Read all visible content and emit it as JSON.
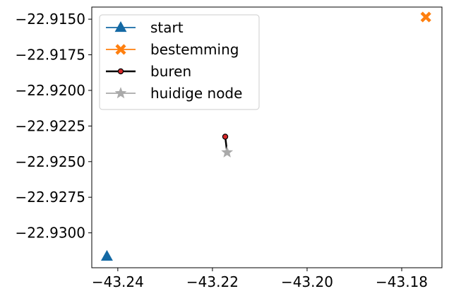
{
  "chart_data": {
    "type": "scatter",
    "title": "",
    "xlabel": "",
    "ylabel": "",
    "xlim": [
      -43.2455,
      -43.1715
    ],
    "ylim": [
      -22.93245,
      -22.91415
    ],
    "x_ticks": [
      -43.24,
      -43.22,
      -43.2,
      -43.18
    ],
    "x_tick_labels": [
      "−43.24",
      "−43.22",
      "−43.20",
      "−43.18"
    ],
    "y_ticks": [
      -22.915,
      -22.9175,
      -22.92,
      -22.9225,
      -22.925,
      -22.9275,
      -22.93
    ],
    "y_tick_labels": [
      "−22.9150",
      "−22.9175",
      "−22.9200",
      "−22.9225",
      "−22.9250",
      "−22.9275",
      "−22.9300"
    ],
    "grid": false,
    "legend_position": "top-left",
    "series": [
      {
        "name": "start",
        "marker": "triangle",
        "color": "#1469a4",
        "points": [
          [
            -43.2423,
            -22.93165
          ]
        ]
      },
      {
        "name": "bestemming",
        "marker": "x",
        "color": "#ff7f0e",
        "points": [
          [
            -43.1749,
            -22.91485
          ]
        ]
      },
      {
        "name": "buren",
        "marker": "circle",
        "color": "#000000",
        "marker_fill": "#d62728",
        "line": true,
        "points": [
          [
            -43.2173,
            -22.92325
          ],
          [
            -43.2169,
            -22.92435
          ]
        ]
      },
      {
        "name": "huidige node",
        "marker": "star",
        "color": "#aaaaaa",
        "points": [
          [
            -43.2169,
            -22.92435
          ]
        ]
      }
    ]
  }
}
